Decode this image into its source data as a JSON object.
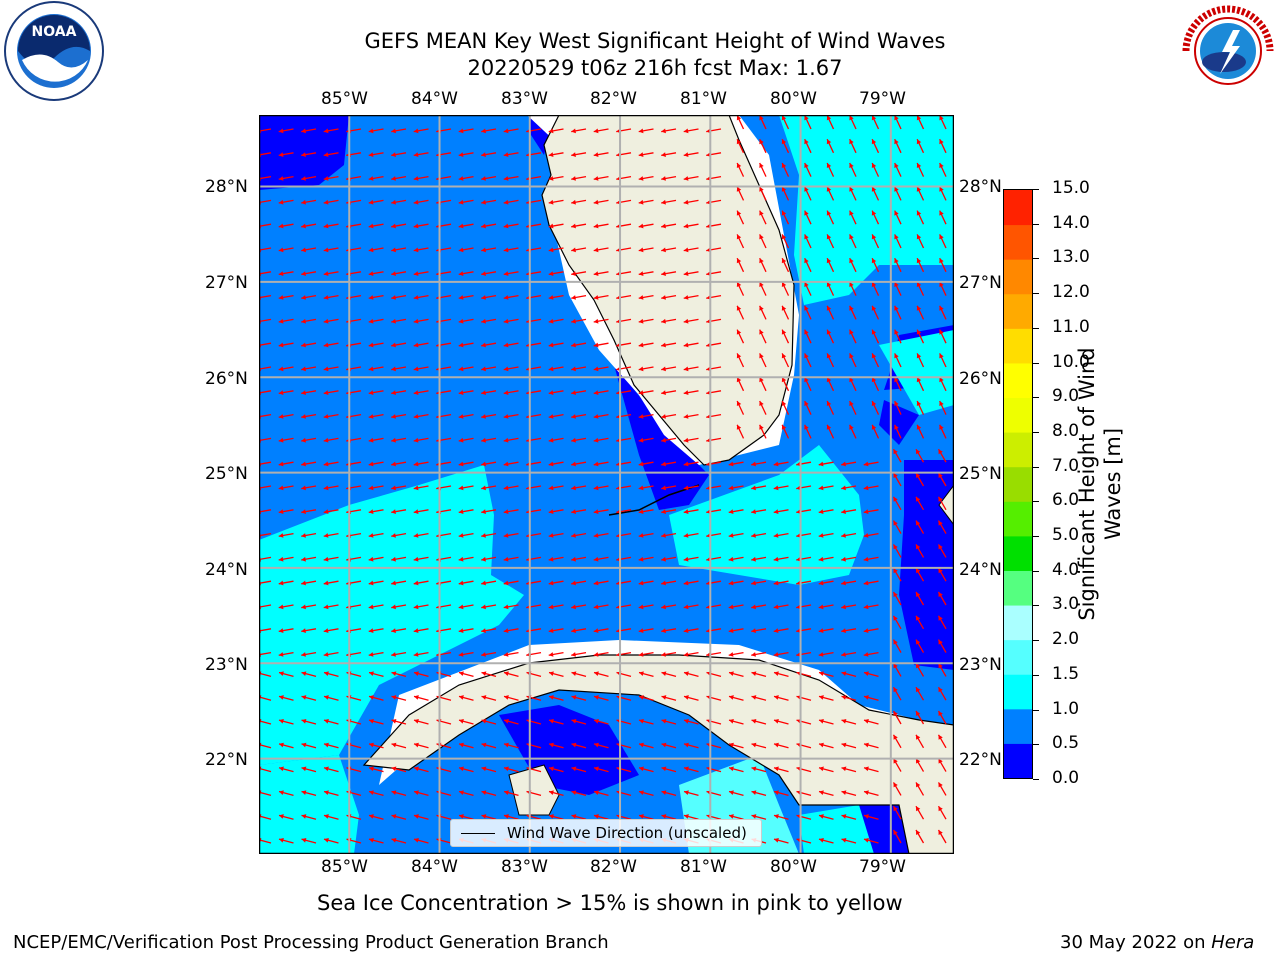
{
  "header": {
    "title_line1": "GEFS MEAN Key West Significant Height of Wind Waves",
    "title_line2": "20220529 t06z 216h fcst   Max: 1.67"
  },
  "logos": {
    "left": "NOAA",
    "left_ring_text": "NATIONAL OCEANIC AND ATMOSPHERIC ADMINISTRATION · U.S. DEPARTMENT OF COMMERCE",
    "right_ring_text": "NATIONAL WEATHER SERVICE"
  },
  "axes": {
    "lon_labels": [
      "85°W",
      "84°W",
      "83°W",
      "82°W",
      "81°W",
      "80°W",
      "79°W"
    ],
    "lat_labels": [
      "28°N",
      "27°N",
      "26°N",
      "25°N",
      "24°N",
      "23°N",
      "22°N"
    ]
  },
  "map": {
    "extent": {
      "lon_min": -86.0,
      "lon_max": -78.3,
      "lat_min": 21.0,
      "lat_max": 28.75
    },
    "land_color": "#efefdf",
    "arrow_color": "#ff0000",
    "grid_color": "#b0b0b0"
  },
  "legend": {
    "label": "Wind Wave Direction (unscaled)"
  },
  "colorbar": {
    "label_line1": "Significant Height of Wind",
    "label_line2": "Waves [m]",
    "ticks": [
      "15.0",
      "14.0",
      "13.0",
      "12.0",
      "11.0",
      "10.0",
      "9.0",
      "8.0",
      "7.0",
      "6.0",
      "5.0",
      "4.0",
      "3.0",
      "2.0",
      "1.5",
      "1.0",
      "0.5",
      "0.0"
    ],
    "colors": [
      "#0000ff",
      "#0080ff",
      "#00ffff",
      "#55ffff",
      "#aaffff",
      "#55ff80",
      "#00e000",
      "#55ee00",
      "#99dd00",
      "#ccee00",
      "#eeff00",
      "#ffff00",
      "#ffdd00",
      "#ffaa00",
      "#ff8800",
      "#ff5500",
      "#ff2200"
    ]
  },
  "footer": {
    "note": "Sea Ice Concentration > 15% is shown in pink to yellow",
    "branch": "NCEP/EMC/Verification Post Processing Product Generation Branch",
    "date": "30 May 2022 on ",
    "machine": "Hera"
  }
}
